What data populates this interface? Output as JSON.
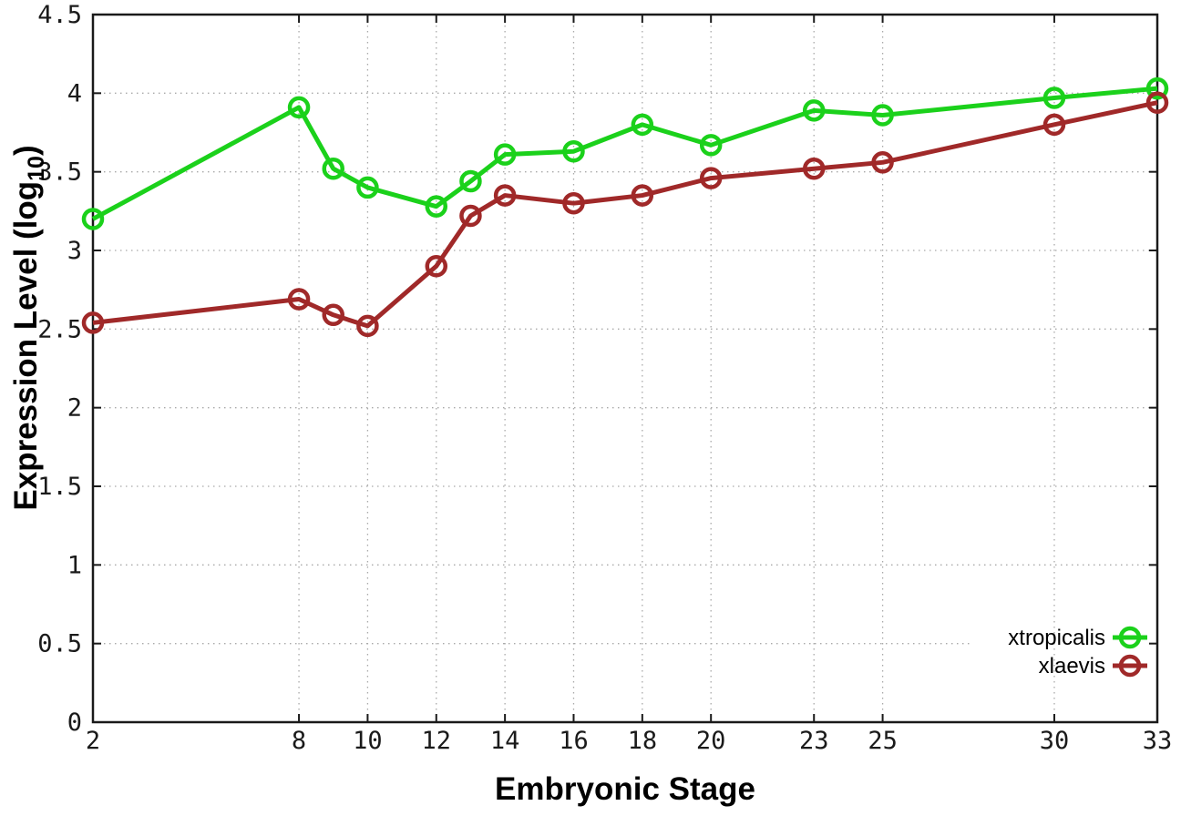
{
  "chart_data": {
    "type": "line",
    "title": "",
    "xlabel": "Embryonic Stage",
    "ylabel": "Expression Level (log10)",
    "ylabel_parts": [
      "Expression Level (log",
      "10",
      ")"
    ],
    "xlim": [
      2,
      33
    ],
    "ylim": [
      0,
      4.5
    ],
    "x_ticks": [
      2,
      8,
      10,
      12,
      14,
      16,
      18,
      20,
      23,
      25,
      30,
      33
    ],
    "y_ticks": [
      0,
      0.5,
      1,
      1.5,
      2,
      2.5,
      3,
      3.5,
      4,
      4.5
    ],
    "y_tick_labels": [
      "0",
      "0.5",
      "1",
      "1.5",
      "2",
      "2.5",
      "3",
      "3.5",
      "4",
      "4.5"
    ],
    "grid": true,
    "grid_style": "dotted",
    "legend_position": "inside-right-bottom",
    "background_color": "#ffffff",
    "border_color": "#1a1a1a",
    "grid_color": "#a9a9a9",
    "stages": [
      2,
      8,
      9,
      10,
      12,
      13,
      14,
      16,
      18,
      20,
      23,
      25,
      30,
      33
    ],
    "series": [
      {
        "name": "xtropicalis",
        "color": "#1bd11b",
        "marker": "open-circle",
        "x": [
          2,
          8,
          9,
          10,
          12,
          13,
          14,
          16,
          18,
          20,
          23,
          25,
          30,
          33
        ],
        "values": [
          3.2,
          3.91,
          3.52,
          3.4,
          3.28,
          3.44,
          3.61,
          3.63,
          3.8,
          3.67,
          3.89,
          3.86,
          3.97,
          4.03
        ]
      },
      {
        "name": "xlaevis",
        "color": "#a02929",
        "marker": "open-circle",
        "x": [
          2,
          8,
          9,
          10,
          12,
          13,
          14,
          16,
          18,
          20,
          23,
          25,
          30,
          33
        ],
        "values": [
          2.54,
          2.69,
          2.59,
          2.52,
          2.9,
          3.22,
          3.35,
          3.3,
          3.35,
          3.46,
          3.52,
          3.56,
          3.8,
          3.94
        ]
      }
    ]
  }
}
